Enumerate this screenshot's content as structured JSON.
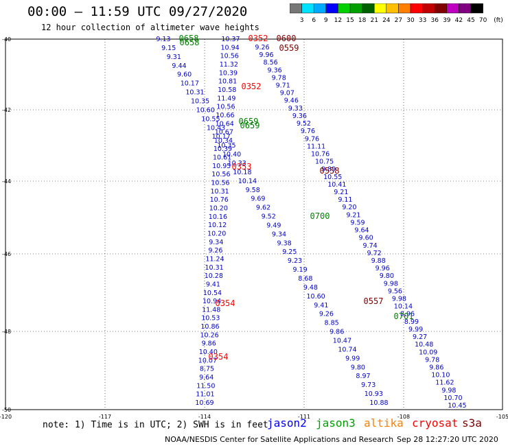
{
  "header": {
    "title": "00:00 – 11:59 UTC 09/27/2020",
    "subtitle": "12 hour collection of altimeter wave heights"
  },
  "colorbar": {
    "ticks": [
      "3",
      "6",
      "9",
      "12",
      "15",
      "18",
      "21",
      "24",
      "27",
      "30",
      "33",
      "36",
      "39",
      "42",
      "45",
      "70"
    ],
    "unit": "(ft)",
    "colors": [
      "#777777",
      "#00e0ff",
      "#00aaff",
      "#0000ff",
      "#00d000",
      "#00a000",
      "#006000",
      "#ffff00",
      "#ffc000",
      "#ff8000",
      "#ff0000",
      "#c00000",
      "#800000",
      "#c000c0",
      "#800080",
      "#000000"
    ]
  },
  "axes": {
    "lat_labels": [
      "-40",
      "-42",
      "-44",
      "-46",
      "-48",
      "-50"
    ],
    "lon_labels": [
      "-120",
      "-117",
      "-114",
      "-111",
      "-108",
      "-105"
    ]
  },
  "time_labels": [
    {
      "text": "0658",
      "color": "#008000"
    },
    {
      "text": "0658",
      "color": "#008000"
    },
    {
      "text": "0352",
      "color": "#ff0000"
    },
    {
      "text": "0600",
      "color": "#800000"
    },
    {
      "text": "0559",
      "color": "#800000"
    },
    {
      "text": "0352",
      "color": "#ff0000"
    },
    {
      "text": "0659",
      "color": "#008000"
    },
    {
      "text": "0659",
      "color": "#008000"
    },
    {
      "text": "0353",
      "color": "#ff0000"
    },
    {
      "text": "0558",
      "color": "#800000"
    },
    {
      "text": "0700",
      "color": "#008000"
    },
    {
      "text": "0354",
      "color": "#ff0000"
    },
    {
      "text": "0557",
      "color": "#800000"
    },
    {
      "text": "0701",
      "color": "#008000"
    },
    {
      "text": "0354",
      "color": "#ff0000"
    }
  ],
  "tracks": {
    "track_a": {
      "color": "#0000cc",
      "values": [
        "10.37",
        "10.94",
        "10.56",
        "11.32",
        "10.39",
        "10.81",
        "10.58",
        "11.49",
        "10.56",
        "10.66",
        "10.64",
        "10.67",
        "10.34",
        "10.39",
        "10.61",
        "10.95",
        "10.56",
        "10.56",
        "10.31",
        "10.76",
        "10.20",
        "10.16",
        "10.12",
        "10.20",
        "9.34",
        "9.26",
        "11.24",
        "10.31",
        "10.28",
        "9.41",
        "10.54",
        "10.94",
        "11.48",
        "10.53",
        "10.86",
        "10.26",
        "9.86",
        "10.40",
        "10.07",
        "8.75",
        "9.64",
        "11.50",
        "11.01",
        "10.69"
      ]
    },
    "track_b": {
      "color": "#0000cc",
      "values": [
        "9.26",
        "9.96",
        "8.56",
        "9.36",
        "9.78",
        "9.71",
        "9.07",
        "9.46",
        "9.33",
        "9.36",
        "9.52",
        "9.76",
        "9.76",
        "11.11",
        "10.76",
        "10.75",
        "9.89",
        "10.55",
        "10.41",
        "9.21",
        "9.11",
        "9.20",
        "9.21",
        "9.59",
        "9.64",
        "9.60",
        "9.74",
        "9.72",
        "9.88",
        "9.96",
        "9.80",
        "9.98",
        "9.56",
        "9.98",
        "10.14",
        "8.96",
        "8.99",
        "9.99",
        "9.27",
        "10.48",
        "10.09",
        "9.78",
        "9.86",
        "10.10",
        "11.62",
        "9.98",
        "10.70",
        "10.45"
      ]
    },
    "track_c": {
      "color": "#0000cc",
      "values": [
        "9.13",
        "9.15",
        "9.31",
        "9.44",
        "9.60",
        "10.17",
        "10.31",
        "10.35",
        "10.60",
        "10.55",
        "10.43",
        "10.17",
        "10.35",
        "10.40",
        "10.33",
        "10.18",
        "10.14",
        "9.58",
        "9.69",
        "9.62",
        "9.52",
        "9.49",
        "9.34",
        "9.38",
        "9.25",
        "9.23",
        "9.19",
        "8.68",
        "9.48",
        "10.60",
        "9.41",
        "9.26",
        "8.85",
        "9.86",
        "10.47",
        "10.74",
        "9.99",
        "9.80",
        "8.97",
        "9.73",
        "10.93",
        "10.88"
      ]
    }
  },
  "footer": {
    "note": "note:  1) Time is in UTC;  2) SWH is in feet",
    "missions": [
      {
        "name": "jason2",
        "color": "#0000ff"
      },
      {
        "name": "jason3",
        "color": "#00a000"
      },
      {
        "name": "altika",
        "color": "#ff8000"
      },
      {
        "name": "cryosat",
        "color": "#ff0000"
      },
      {
        "name": "s3a",
        "color": "#800000"
      }
    ],
    "credit": "NOAA/NESDIS Center for Satellite Applications and Research",
    "timestamp": "Sep 28 12:27:20 UTC 2020"
  }
}
